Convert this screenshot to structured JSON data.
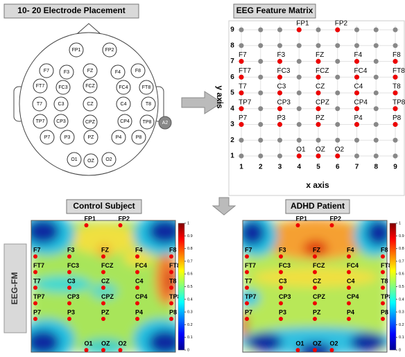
{
  "panels": {
    "placement": {
      "title": "10- 20 Electrode Placement",
      "reference": "A2"
    },
    "matrix": {
      "title": "EEG Feature Matrix",
      "x_axis_label": "x axis",
      "y_axis_label": "y axis",
      "x_ticks": [
        1,
        2,
        3,
        4,
        5,
        6,
        7,
        8,
        9
      ],
      "y_ticks": [
        1,
        2,
        3,
        4,
        5,
        6,
        7,
        8,
        9
      ]
    },
    "control": {
      "title": "Control Subject"
    },
    "adhd": {
      "title": "ADHD Patient"
    },
    "row_label": "EEG-FM",
    "colorbar_ticks": [
      0,
      0.1,
      0.2,
      0.3,
      0.4,
      0.5,
      0.6,
      0.7,
      0.8,
      0.9,
      1
    ]
  },
  "electrodes": [
    "FP1",
    "FP2",
    "F7",
    "F3",
    "FZ",
    "F4",
    "F8",
    "FT7",
    "FC3",
    "FCZ",
    "FC4",
    "FT8",
    "T7",
    "C3",
    "CZ",
    "C4",
    "T8",
    "TP7",
    "CP3",
    "CPZ",
    "CP4",
    "TP8",
    "P7",
    "P3",
    "PZ",
    "P4",
    "P8",
    "O1",
    "OZ",
    "O2"
  ]
}
